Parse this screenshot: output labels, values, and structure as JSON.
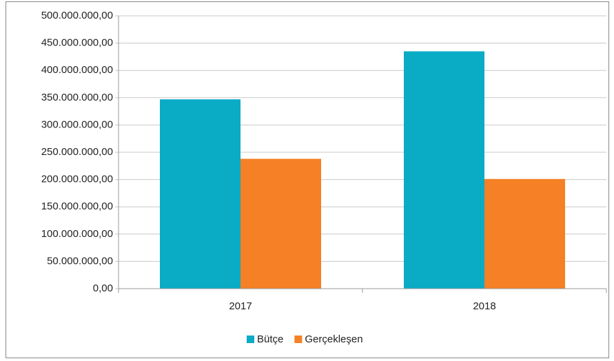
{
  "chart_data": {
    "type": "bar",
    "categories": [
      "2017",
      "2018"
    ],
    "series": [
      {
        "name": "Bütçe",
        "color": "#0aabc5",
        "values": [
          347000000,
          435000000
        ]
      },
      {
        "name": "Gerçekleşen",
        "color": "#f58025",
        "values": [
          238000000,
          201000000
        ]
      }
    ],
    "ylim": [
      0,
      500000000
    ],
    "yticks": [
      {
        "value": 0,
        "label": "0,00"
      },
      {
        "value": 50000000,
        "label": "50.000.000,00"
      },
      {
        "value": 100000000,
        "label": "100.000.000,00"
      },
      {
        "value": 150000000,
        "label": "150.000.000,00"
      },
      {
        "value": 200000000,
        "label": "200.000.000,00"
      },
      {
        "value": 250000000,
        "label": "250.000.000,00"
      },
      {
        "value": 300000000,
        "label": "300.000.000,00"
      },
      {
        "value": 350000000,
        "label": "350.000.000,00"
      },
      {
        "value": 400000000,
        "label": "400.000.000,00"
      },
      {
        "value": 450000000,
        "label": "450.000.000,00"
      },
      {
        "value": 500000000,
        "label": "500.000.000,00"
      }
    ],
    "grid": true,
    "legend": "bottom"
  }
}
